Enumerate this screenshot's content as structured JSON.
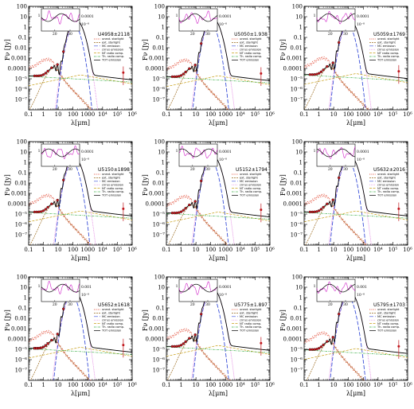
{
  "chart_data": {
    "type": "line",
    "layout": "3x3 grid of SED panels",
    "xlabel": "λ[μm]",
    "ylabel": "Fν [Jy]",
    "xscale": "log",
    "yscale": "log",
    "xlim": [
      0.1,
      1000000
    ],
    "ylim": [
      1e-08,
      100
    ],
    "xticks": [
      "0.1",
      "1",
      "10",
      "100",
      "1000",
      "10⁴",
      "10⁵",
      "10⁶"
    ],
    "yticks": [
      "10⁻⁷",
      "10⁻⁶",
      "10⁻⁵",
      "0.0001",
      "0.001",
      "0.01",
      "0.1",
      "1",
      "10",
      "100"
    ],
    "legend": [
      "unext. starlight",
      "ext. starlight",
      "MC emission",
      "cirrus emission",
      "NT radio comp.",
      "Th. radio comp.",
      "TOT emission"
    ],
    "series_colors": {
      "unext. starlight": "#e0402a",
      "ext. starlight": "#9a6a1f",
      "MC emission": "#3a4fd8",
      "cirrus emission": "#e07fe0",
      "NT radio comp.": "#c8a018",
      "Th. radio comp.": "#3fb04a",
      "TOT emission": "#000000"
    },
    "inset": {
      "xticks": [
        "20",
        "30"
      ],
      "yticks": [
        "1",
        "0.0001",
        "10⁻⁸"
      ]
    },
    "panels": [
      {
        "name": "U4958±2118",
        "peak_um": 120,
        "peak_jy": 5,
        "uv_jy": 6e-05,
        "inset_yticks": [
          "0.0001",
          "10⁻⁸"
        ],
        "sym": "circle"
      },
      {
        "name": "U5050±1.938",
        "peak_um": 100,
        "peak_jy": 8,
        "uv_jy": 5e-05,
        "inset_yticks": [
          "0.0001",
          "10⁻⁸"
        ],
        "sym": "circle"
      },
      {
        "name": "U5059±1769",
        "peak_um": 90,
        "peak_jy": 5,
        "uv_jy": 8e-05,
        "inset_yticks": [
          "0.0001",
          "10⁻⁸"
        ],
        "sym": "circle"
      },
      {
        "name": "U5150±1898",
        "peak_um": 90,
        "peak_jy": 3,
        "uv_jy": 5e-05,
        "inset_yticks": [
          "0.0001",
          "10⁻⁸"
        ],
        "sym": "circle"
      },
      {
        "name": "U5152±1794",
        "peak_um": 100,
        "peak_jy": 5,
        "uv_jy": 4e-05,
        "inset_yticks": [
          "0.0001",
          "10⁻⁸"
        ],
        "sym": "circle"
      },
      {
        "name": "U5632±2016",
        "peak_um": 90,
        "peak_jy": 5,
        "uv_jy": 5e-05,
        "inset_yticks": [
          "0.0001",
          "10⁻⁸"
        ],
        "sym": "circle"
      },
      {
        "name": "U5652±1618",
        "peak_um": 80,
        "peak_jy": 6,
        "uv_jy": 4e-05,
        "inset_yticks": [
          "0.001",
          "10⁻⁸"
        ],
        "sym": "square"
      },
      {
        "name": "U5775±1.897",
        "peak_um": 100,
        "peak_jy": 8,
        "uv_jy": 6e-05,
        "inset_yticks": [
          "0.0001",
          "10⁻⁸"
        ],
        "sym": "circle"
      },
      {
        "name": "U5795±1703",
        "peak_um": 90,
        "peak_jy": 4,
        "uv_jy": 3e-05,
        "inset_yticks": [
          "0.001",
          "10⁻⁸"
        ],
        "sym": "circle"
      }
    ]
  }
}
